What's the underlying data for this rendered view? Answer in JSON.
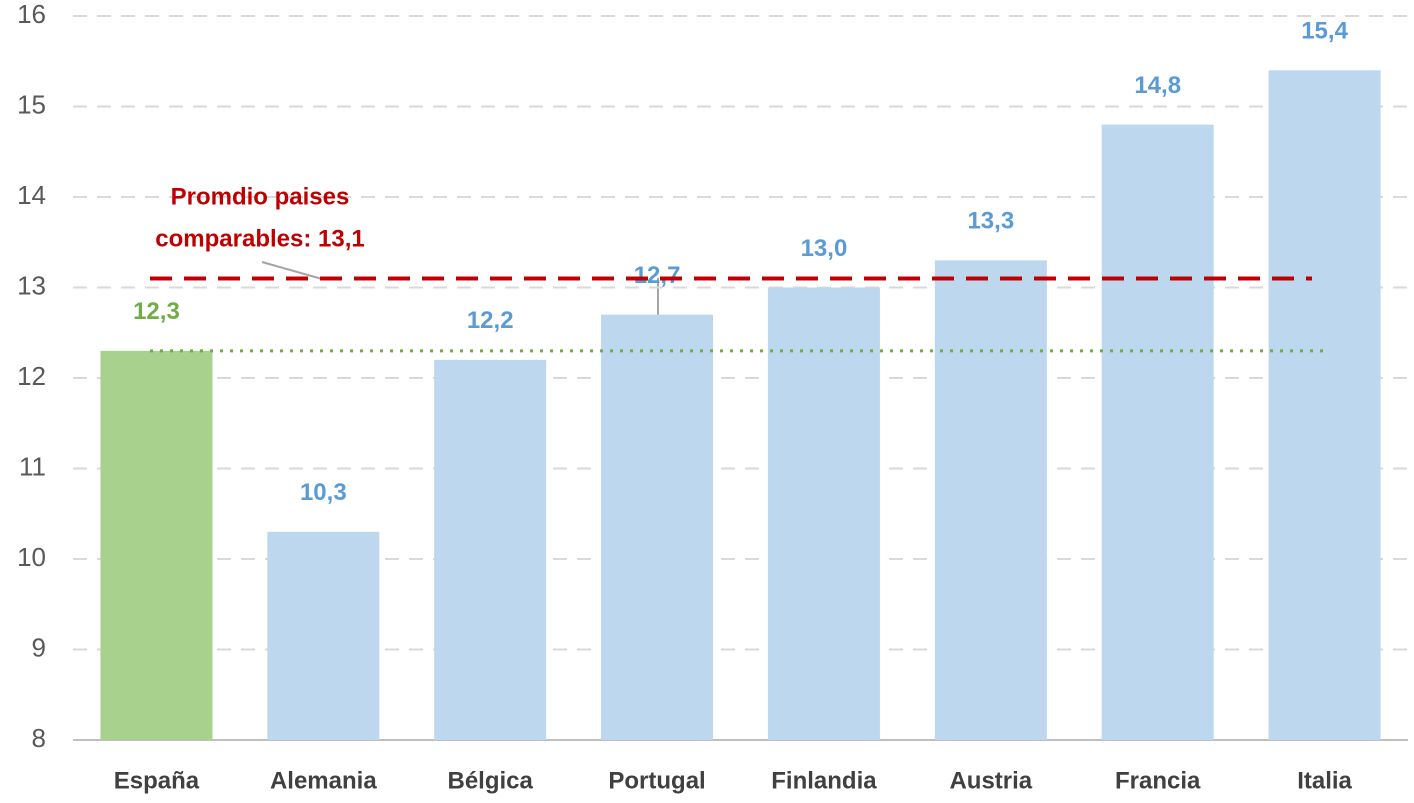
{
  "chart_data": {
    "type": "bar",
    "categories": [
      "España",
      "Alemania",
      "Bélgica",
      "Portugal",
      "Finlandia",
      "Austria",
      "Francia",
      "Italia"
    ],
    "values": [
      12.3,
      10.3,
      12.2,
      12.7,
      13.0,
      13.3,
      14.8,
      15.4
    ],
    "value_labels": [
      "12,3",
      "10,3",
      "12,2",
      "12,7",
      "13,0",
      "13,3",
      "14,8",
      "15,4"
    ],
    "colors": [
      "#a9d18e",
      "#bdd7ee",
      "#bdd7ee",
      "#bdd7ee",
      "#bdd7ee",
      "#bdd7ee",
      "#bdd7ee",
      "#bdd7ee"
    ],
    "label_colors": [
      "#70ad47",
      "#5b9bd5",
      "#5b9bd5",
      "#5b9bd5",
      "#5b9bd5",
      "#5b9bd5",
      "#5b9bd5",
      "#5b9bd5"
    ],
    "ylim": [
      8,
      16
    ],
    "yticks": [
      8,
      9,
      10,
      11,
      12,
      13,
      14,
      15,
      16
    ],
    "grid": true,
    "reference_lines": [
      {
        "value": 13.1,
        "color": "#c00000",
        "style": "dashed"
      },
      {
        "value": 12.3,
        "color": "#70ad47",
        "style": "dotted"
      }
    ],
    "annotation": [
      "Promdio paises",
      "comparables: 13,1"
    ],
    "annotation_color": "#c00000"
  }
}
